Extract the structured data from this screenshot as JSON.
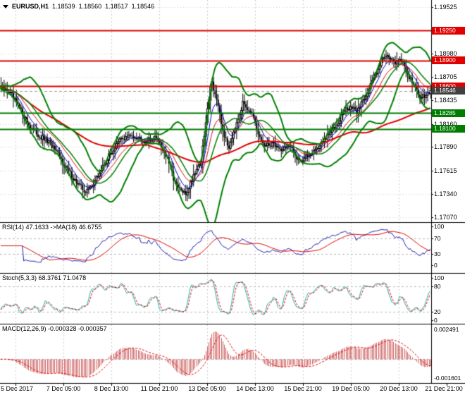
{
  "header": {
    "symbol": "EURUSD,H1",
    "open": "1.18539",
    "high": "1.18560",
    "low": "1.18517",
    "close": "1.18546"
  },
  "colors": {
    "background": "#ffffff",
    "bars": "#000000",
    "grid": "#cdcdcd",
    "bollinger": "#008000",
    "ma_slow": "#e10000",
    "ma_fast_blue": "#0000c8",
    "ma_fast_red": "#cf1010",
    "resistance": "#e10000",
    "support": "#007c00",
    "current_price_badge": "#404040",
    "rsi_main": "#2020b0",
    "rsi_signal": "#e10000",
    "stoch_main": "#20b2aa",
    "stoch_signal": "#e10000",
    "macd_histogram": "#cd5c5c",
    "macd_signal": "#e10000",
    "panel_border": "#000000",
    "level_dash": "#b8b8b8"
  },
  "chart_data": [
    {
      "type": "candlestick",
      "title": "EURUSD,H1",
      "x_labels": [
        "5 Dec 2017",
        "7 Dec 05:00",
        "8 Dec 13:00",
        "11 Dec 21:00",
        "13 Dec 05:00",
        "14 Dec 13:00",
        "15 Dec 21:00",
        "19 Dec 05:00",
        "20 Dec 13:00",
        "21 Dec 21:00"
      ],
      "y_tick_labels": [
        "1.19525",
        "1.18980",
        "1.18705",
        "1.18435",
        "1.18160",
        "1.17890",
        "1.17615",
        "1.17340",
        "1.17070"
      ],
      "ylim": [
        1.17012,
        1.19607
      ],
      "resistance_levels": [
        "1.19250",
        "1.18900",
        "1.18600"
      ],
      "support_levels": [
        "1.18285",
        "1.18100"
      ],
      "current_price": "1.18546",
      "last_bar_ohlc": {
        "open": 1.18539,
        "high": 1.1856,
        "low": 1.18517,
        "close": 1.18546
      },
      "overlays": [
        "Bollinger Bands (green)",
        "slow MA (red)",
        "fast MA (blue)",
        "fast MA (thin red)"
      ],
      "price_path": [
        [
          0.0,
          1.1857
        ],
        [
          0.018,
          1.1854
        ],
        [
          0.04,
          1.1837
        ],
        [
          0.065,
          1.1815
        ],
        [
          0.09,
          1.1801
        ],
        [
          0.115,
          1.1793
        ],
        [
          0.145,
          1.177
        ],
        [
          0.175,
          1.1748
        ],
        [
          0.198,
          1.1736
        ],
        [
          0.22,
          1.175
        ],
        [
          0.248,
          1.1776
        ],
        [
          0.278,
          1.1798
        ],
        [
          0.308,
          1.1803
        ],
        [
          0.338,
          1.1796
        ],
        [
          0.363,
          1.18
        ],
        [
          0.388,
          1.1774
        ],
        [
          0.408,
          1.1743
        ],
        [
          0.43,
          1.1733
        ],
        [
          0.45,
          1.1759
        ],
        [
          0.466,
          1.1773
        ],
        [
          0.477,
          1.1818
        ],
        [
          0.489,
          1.1868
        ],
        [
          0.501,
          1.1846
        ],
        [
          0.514,
          1.1812
        ],
        [
          0.529,
          1.1787
        ],
        [
          0.547,
          1.1817
        ],
        [
          0.564,
          1.1841
        ],
        [
          0.582,
          1.183
        ],
        [
          0.599,
          1.1802
        ],
        [
          0.616,
          1.1789
        ],
        [
          0.632,
          1.1794
        ],
        [
          0.651,
          1.1786
        ],
        [
          0.669,
          1.1791
        ],
        [
          0.687,
          1.1778
        ],
        [
          0.701,
          1.1773
        ],
        [
          0.721,
          1.1782
        ],
        [
          0.741,
          1.179
        ],
        [
          0.761,
          1.1802
        ],
        [
          0.781,
          1.1816
        ],
        [
          0.799,
          1.1831
        ],
        [
          0.814,
          1.1836
        ],
        [
          0.827,
          1.1829
        ],
        [
          0.842,
          1.1844
        ],
        [
          0.857,
          1.1857
        ],
        [
          0.871,
          1.1874
        ],
        [
          0.886,
          1.1891
        ],
        [
          0.899,
          1.1898
        ],
        [
          0.914,
          1.1886
        ],
        [
          0.929,
          1.1893
        ],
        [
          0.944,
          1.1877
        ],
        [
          0.959,
          1.1863
        ],
        [
          0.974,
          1.1848
        ],
        [
          0.987,
          1.185
        ],
        [
          1.0,
          1.18546
        ]
      ]
    },
    {
      "type": "line",
      "indicator": "RSI",
      "label": "RSI(14) 47.1633 ->MA(18) 46.6755",
      "current": {
        "rsi": "47.1633",
        "ma": "46.6755"
      },
      "y_tick_labels": [
        "100",
        "70",
        "30",
        "0"
      ],
      "levels": [
        70,
        30
      ],
      "range": [
        0,
        100
      ]
    },
    {
      "type": "line",
      "indicator": "Stochastic",
      "label": "Stoch(5,3,3) 68.3761 71.0478",
      "current": {
        "k": "68.3761",
        "d": "71.0478"
      },
      "y_tick_labels": [
        "100",
        "80",
        "20",
        "0"
      ],
      "levels": [
        80,
        20
      ],
      "range": [
        0,
        100
      ]
    },
    {
      "type": "histogram",
      "indicator": "MACD",
      "label": "MACD(12,26,9) -0.000328 -0.000357",
      "current": {
        "macd": "-0.000328",
        "signal": "-0.000357"
      },
      "y_tick_labels": [
        "0.002491",
        "-0.001601"
      ]
    }
  ]
}
